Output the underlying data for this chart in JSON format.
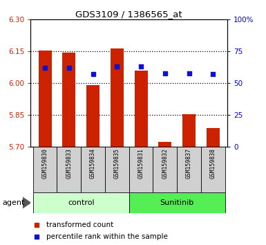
{
  "title": "GDS3109 / 1386565_at",
  "samples": [
    "GSM159830",
    "GSM159833",
    "GSM159834",
    "GSM159835",
    "GSM159831",
    "GSM159832",
    "GSM159837",
    "GSM159838"
  ],
  "bar_values": [
    6.155,
    6.145,
    5.99,
    6.165,
    6.06,
    5.725,
    5.855,
    5.79
  ],
  "percentile_values": [
    62,
    62,
    57,
    63,
    63,
    58,
    58,
    57
  ],
  "ylim": [
    5.7,
    6.3
  ],
  "yticks_left": [
    5.7,
    5.85,
    6.0,
    6.15,
    6.3
  ],
  "yticks_right_vals": [
    0,
    25,
    50,
    75,
    100
  ],
  "yticks_right_labels": [
    "0",
    "25",
    "50",
    "75",
    "100%"
  ],
  "bar_color": "#cc2200",
  "dot_color": "#1111cc",
  "group_labels": [
    "control",
    "Sunitinib"
  ],
  "group_colors_light": [
    "#ccffcc",
    "#55ee55"
  ],
  "group_ranges": [
    [
      0,
      4
    ],
    [
      4,
      8
    ]
  ],
  "agent_label": "agent",
  "legend_bar_label": "transformed count",
  "legend_dot_label": "percentile rank within the sample",
  "tick_color_left": "#cc2200",
  "tick_color_right": "#0000cc",
  "grid_yticks": [
    5.85,
    6.0,
    6.15
  ],
  "bar_bottom": 5.7,
  "sample_bg": "#d0d0d0"
}
